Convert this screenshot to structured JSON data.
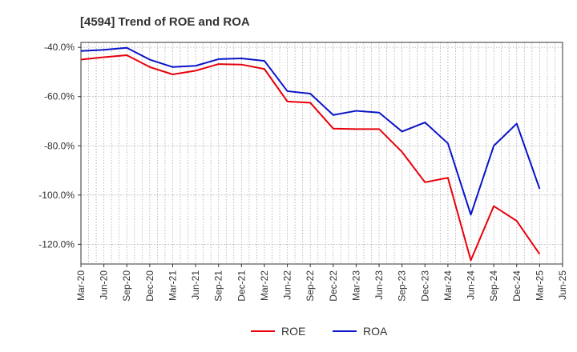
{
  "chart_data": {
    "type": "line",
    "title": "[4594]  Trend of ROE and ROA",
    "xlabel": "",
    "ylabel": "",
    "ylim": [
      -128,
      -38
    ],
    "yticks": [
      -40,
      -60,
      -80,
      -100,
      -120
    ],
    "ytick_labels": [
      "-40.0%",
      "-60.0%",
      "-80.0%",
      "-100.0%",
      "-120.0%"
    ],
    "xtick_labels": [
      "Mar-20",
      "Jun-20",
      "Sep-20",
      "Dec-20",
      "Mar-21",
      "Jun-21",
      "Sep-21",
      "Dec-21",
      "Mar-22",
      "Jun-22",
      "Sep-22",
      "Dec-22",
      "Mar-23",
      "Jun-23",
      "Sep-23",
      "Dec-23",
      "Mar-24",
      "Jun-24",
      "Sep-24",
      "Dec-24",
      "Mar-25",
      "Jun-25"
    ],
    "grid": true,
    "legend_position": "bottom-center",
    "series": [
      {
        "name": "ROE",
        "color": "#e8000b",
        "points": [
          [
            "Mar-20",
            -45.0
          ],
          [
            "Jun-20",
            -44.0
          ],
          [
            "Sep-20",
            -43.2
          ],
          [
            "Dec-20",
            -48.0
          ],
          [
            "Mar-21",
            -51.0
          ],
          [
            "Jun-21",
            -49.5
          ],
          [
            "Sep-21",
            -46.8
          ],
          [
            "Dec-21",
            -47.0
          ],
          [
            "Mar-22",
            -48.8
          ],
          [
            "Jun-22",
            -62.0
          ],
          [
            "Sep-22",
            -62.5
          ],
          [
            "Dec-22",
            -73.0
          ],
          [
            "Mar-23",
            -73.2
          ],
          [
            "Jun-23",
            -73.2
          ],
          [
            "Sep-23",
            -82.5
          ],
          [
            "Dec-23",
            -94.8
          ],
          [
            "Mar-24",
            -93.0
          ],
          [
            "Jun-24",
            -126.5
          ],
          [
            "Sep-24",
            -104.5
          ],
          [
            "Dec-24",
            -110.5
          ],
          [
            "Mar-25",
            -124.0
          ]
        ]
      },
      {
        "name": "ROA",
        "color": "#0a14c8",
        "points": [
          [
            "Mar-20",
            -41.5
          ],
          [
            "Jun-20",
            -41.0
          ],
          [
            "Sep-20",
            -40.2
          ],
          [
            "Dec-20",
            -45.0
          ],
          [
            "Mar-21",
            -48.0
          ],
          [
            "Jun-21",
            -47.5
          ],
          [
            "Sep-21",
            -44.8
          ],
          [
            "Dec-21",
            -44.5
          ],
          [
            "Mar-22",
            -45.5
          ],
          [
            "Jun-22",
            -57.8
          ],
          [
            "Sep-22",
            -58.8
          ],
          [
            "Dec-22",
            -67.5
          ],
          [
            "Mar-23",
            -65.8
          ],
          [
            "Jun-23",
            -66.5
          ],
          [
            "Sep-23",
            -74.2
          ],
          [
            "Dec-23",
            -70.5
          ],
          [
            "Mar-24",
            -79.0
          ],
          [
            "Jun-24",
            -108.0
          ],
          [
            "Sep-24",
            -80.0
          ],
          [
            "Dec-24",
            -71.0
          ],
          [
            "Mar-25",
            -97.5
          ]
        ]
      }
    ]
  }
}
